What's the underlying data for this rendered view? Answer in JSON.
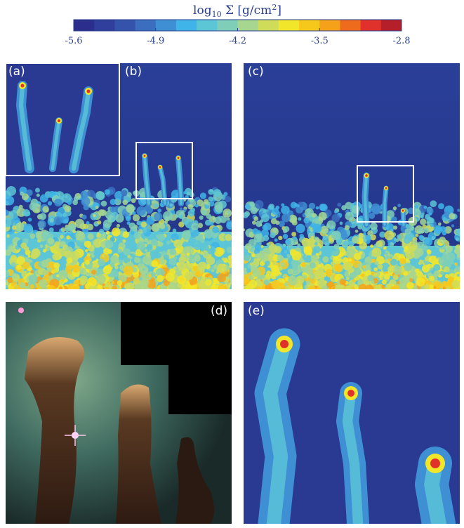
{
  "colorbar": {
    "label": [
      "log",
      "10",
      " Σ [g/cm",
      "2",
      "]"
    ],
    "range": [
      -5.6,
      -2.8
    ],
    "ticks": [
      -5.6,
      -4.9,
      -4.2,
      -3.5,
      -2.8
    ],
    "colors": [
      "#2b2e8c",
      "#2f3f9b",
      "#3553ab",
      "#3b6ebf",
      "#3f8fd4",
      "#3fb4e8",
      "#5cc6d6",
      "#7fcfb8",
      "#a6d690",
      "#cfdc5a",
      "#f2e62a",
      "#f7c81c",
      "#f5a21a",
      "#ee6a1c",
      "#e0322a",
      "#b51f2a"
    ]
  },
  "panels": [
    {
      "label": "(a)"
    },
    {
      "label": "(b)"
    },
    {
      "label": "(c)"
    },
    {
      "label": "(d)"
    },
    {
      "label": "(e)"
    }
  ]
}
